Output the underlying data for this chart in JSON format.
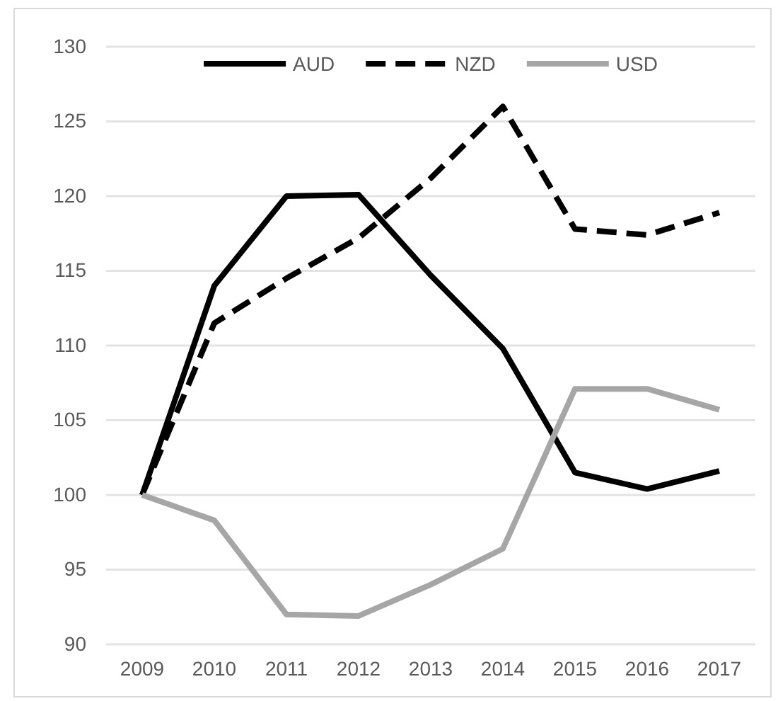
{
  "chart_data": {
    "type": "line",
    "categories": [
      "2009",
      "2010",
      "2011",
      "2012",
      "2013",
      "2014",
      "2015",
      "2016",
      "2017"
    ],
    "series": [
      {
        "name": "AUD",
        "color": "#000000",
        "line_style": "solid",
        "values": [
          100,
          114,
          120,
          120.1,
          114.7,
          109.8,
          101.5,
          100.4,
          101.6
        ]
      },
      {
        "name": "NZD",
        "color": "#000000",
        "line_style": "dashed",
        "values": [
          100,
          111.5,
          114.5,
          117.2,
          121.2,
          126,
          117.8,
          117.4,
          118.9
        ]
      },
      {
        "name": "USD",
        "color": "#a6a6a6",
        "line_style": "solid",
        "values": [
          100,
          98.3,
          92,
          91.9,
          94,
          96.4,
          107.1,
          107.1,
          105.7
        ]
      }
    ],
    "ylim": [
      90,
      130
    ],
    "yticks": [
      90,
      95,
      100,
      105,
      110,
      115,
      120,
      125,
      130
    ],
    "grid": "y",
    "legend": "top",
    "marker": "none"
  }
}
